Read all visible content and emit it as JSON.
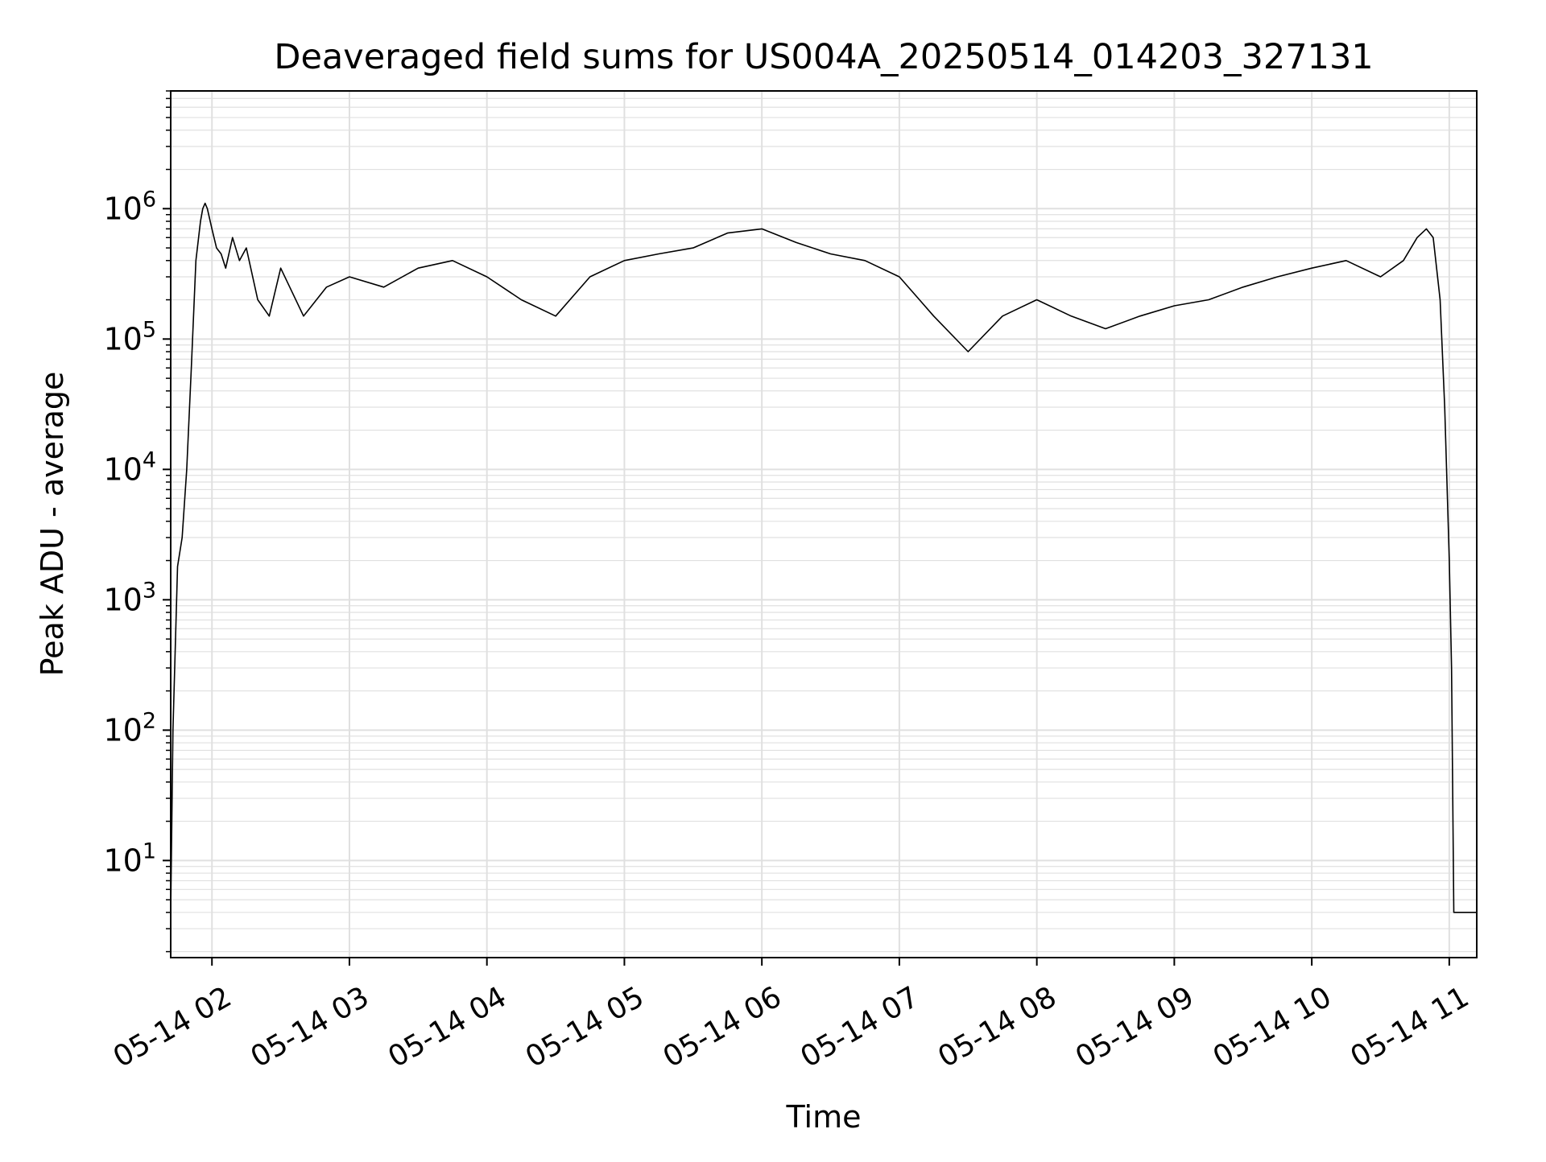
{
  "chart_data": {
    "type": "line",
    "title": "Deaveraged field sums for US004A_20250514_014203_327131",
    "xlabel": "Time",
    "ylabel": "Peak ADU - average",
    "x_type": "datetime",
    "xlim": [
      "2025-05-14 01:42",
      "2025-05-14 11:12"
    ],
    "x_ticks": [
      "2025-05-14 02:00",
      "2025-05-14 03:00",
      "2025-05-14 04:00",
      "2025-05-14 05:00",
      "2025-05-14 06:00",
      "2025-05-14 07:00",
      "2025-05-14 08:00",
      "2025-05-14 09:00",
      "2025-05-14 10:00",
      "2025-05-14 11:00"
    ],
    "x_tick_labels": [
      "05-14 02",
      "05-14 03",
      "05-14 04",
      "05-14 05",
      "05-14 06",
      "05-14 07",
      "05-14 08",
      "05-14 09",
      "05-14 10",
      "05-14 11"
    ],
    "yscale": "log",
    "ylim": [
      1.8,
      8000000
    ],
    "y_ticks": [
      10,
      100,
      1000,
      10000,
      100000,
      1000000
    ],
    "y_tick_labels": [
      {
        "base": "10",
        "exp": "1"
      },
      {
        "base": "10",
        "exp": "2"
      },
      {
        "base": "10",
        "exp": "3"
      },
      {
        "base": "10",
        "exp": "4"
      },
      {
        "base": "10",
        "exp": "5"
      },
      {
        "base": "10",
        "exp": "6"
      }
    ],
    "grid": true,
    "line_color": "#000000",
    "grid_color": "#e0e0e0",
    "series": [
      {
        "x": [
          "2025-05-14 01:42",
          "2025-05-14 01:43",
          "2025-05-14 01:45",
          "2025-05-14 01:47",
          "2025-05-14 01:49",
          "2025-05-14 01:51",
          "2025-05-14 01:53",
          "2025-05-14 01:55",
          "2025-05-14 01:56",
          "2025-05-14 01:57",
          "2025-05-14 01:58",
          "2025-05-14 02:00",
          "2025-05-14 02:02",
          "2025-05-14 02:04",
          "2025-05-14 02:06",
          "2025-05-14 02:09",
          "2025-05-14 02:12",
          "2025-05-14 02:15",
          "2025-05-14 02:20",
          "2025-05-14 02:25",
          "2025-05-14 02:30",
          "2025-05-14 02:40",
          "2025-05-14 02:50",
          "2025-05-14 03:00",
          "2025-05-14 03:15",
          "2025-05-14 03:30",
          "2025-05-14 03:45",
          "2025-05-14 04:00",
          "2025-05-14 04:15",
          "2025-05-14 04:30",
          "2025-05-14 04:45",
          "2025-05-14 05:00",
          "2025-05-14 05:15",
          "2025-05-14 05:30",
          "2025-05-14 05:45",
          "2025-05-14 06:00",
          "2025-05-14 06:15",
          "2025-05-14 06:30",
          "2025-05-14 06:45",
          "2025-05-14 07:00",
          "2025-05-14 07:15",
          "2025-05-14 07:30",
          "2025-05-14 07:45",
          "2025-05-14 08:00",
          "2025-05-14 08:15",
          "2025-05-14 08:30",
          "2025-05-14 08:45",
          "2025-05-14 09:00",
          "2025-05-14 09:15",
          "2025-05-14 09:30",
          "2025-05-14 09:45",
          "2025-05-14 10:00",
          "2025-05-14 10:15",
          "2025-05-14 10:30",
          "2025-05-14 10:40",
          "2025-05-14 10:46",
          "2025-05-14 10:50",
          "2025-05-14 10:53",
          "2025-05-14 10:56",
          "2025-05-14 10:58",
          "2025-05-14 11:00",
          "2025-05-14 11:01",
          "2025-05-14 11:02",
          "2025-05-14 11:12"
        ],
        "y": [
          4,
          100,
          1800,
          3000,
          10000,
          60000,
          400000,
          800000,
          1000000,
          1100000,
          1000000,
          700000,
          500000,
          450000,
          350000,
          600000,
          400000,
          500000,
          200000,
          150000,
          350000,
          150000,
          250000,
          300000,
          250000,
          350000,
          400000,
          300000,
          200000,
          150000,
          300000,
          400000,
          450000,
          500000,
          650000,
          700000,
          550000,
          450000,
          400000,
          300000,
          150000,
          80000,
          150000,
          200000,
          150000,
          120000,
          150000,
          180000,
          200000,
          250000,
          300000,
          350000,
          400000,
          300000,
          400000,
          600000,
          700000,
          600000,
          200000,
          30000,
          2000,
          300,
          4,
          4
        ]
      }
    ]
  }
}
